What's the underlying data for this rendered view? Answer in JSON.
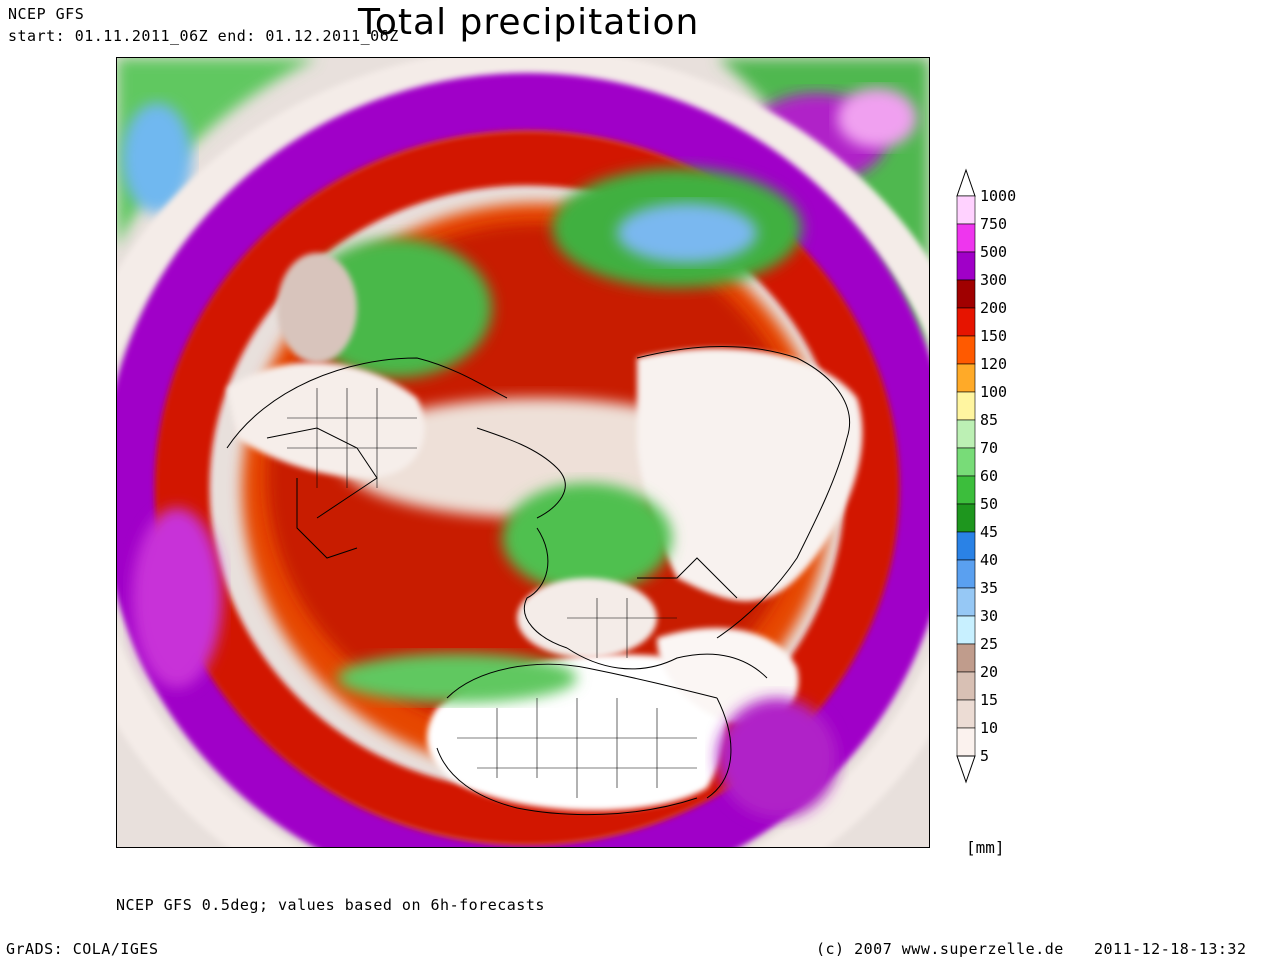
{
  "header": {
    "source": "NCEP GFS",
    "period": "start: 01.11.2011_06Z    end: 01.12.2011_06Z",
    "title": "Total precipitation"
  },
  "legend": {
    "unit": "[mm]",
    "levels": [
      {
        "label": "1000",
        "color": "#ffd2ff"
      },
      {
        "label": "750",
        "color": "#ee36ee"
      },
      {
        "label": "500",
        "color": "#a000c8"
      },
      {
        "label": "300",
        "color": "#a00000"
      },
      {
        "label": "200",
        "color": "#e61400"
      },
      {
        "label": "150",
        "color": "#ff5a00"
      },
      {
        "label": "120",
        "color": "#ffaa28"
      },
      {
        "label": "100",
        "color": "#fff5a0"
      },
      {
        "label": "85",
        "color": "#bcf0b4"
      },
      {
        "label": "70",
        "color": "#78dc78"
      },
      {
        "label": "60",
        "color": "#3cbe3c"
      },
      {
        "label": "50",
        "color": "#1e961e"
      },
      {
        "label": "45",
        "color": "#2a82e6"
      },
      {
        "label": "40",
        "color": "#5aa0f0"
      },
      {
        "label": "35",
        "color": "#96c8f5"
      },
      {
        "label": "30",
        "color": "#c8f0ff"
      },
      {
        "label": "25",
        "color": "#c09c8c"
      },
      {
        "label": "20",
        "color": "#d8c0b4"
      },
      {
        "label": "15",
        "color": "#ecdcd4"
      },
      {
        "label": "10",
        "color": "#fbf2ee"
      },
      {
        "label": "5",
        "color": ""
      }
    ]
  },
  "footer": {
    "note": "NCEP GFS 0.5deg; values based on 6h-forecasts",
    "software": "GrADS: COLA/IGES",
    "copyright": "(c) 2007 www.superzelle.de",
    "timestamp": "2011-12-18-13:32"
  }
}
